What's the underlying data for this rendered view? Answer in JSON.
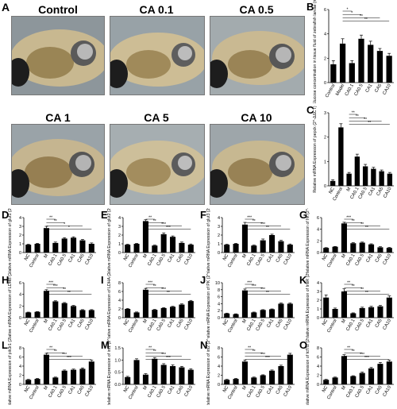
{
  "figure": {
    "images": [
      {
        "label": "A",
        "title": "Control"
      },
      {
        "label": "",
        "title": "CA 0.1"
      },
      {
        "label": "",
        "title": "CA 0.5"
      },
      {
        "label": "",
        "title": "CA 1"
      },
      {
        "label": "",
        "title": "CA 5"
      },
      {
        "label": "",
        "title": "CA 10"
      }
    ]
  },
  "chart_data": [
    {
      "panel": "B",
      "type": "bar",
      "ylabel": "Glucose concentration in tissue fluid of zebrafish larvae (mmol/L)",
      "categories": [
        "Control",
        "Model",
        "CA0.1",
        "CA0.5",
        "CA1",
        "CA5",
        "CA10"
      ],
      "values": [
        1.5,
        3.2,
        1.6,
        3.6,
        3.1,
        2.6,
        2.2
      ],
      "errors": [
        0.3,
        0.4,
        0.2,
        0.3,
        0.3,
        0.2,
        0.2
      ],
      "ylim": [
        0,
        6
      ],
      "yticks": [
        "0",
        "2",
        "4",
        "6"
      ],
      "sig": [
        "*",
        "*",
        "**",
        "**"
      ]
    },
    {
      "panel": "C",
      "type": "bar",
      "ylabel": "Relative mRNA Expression of pepck (2^-ΔΔCT)",
      "categories": [
        "NC",
        "Control",
        "M",
        "CA0.1",
        "CA0.5",
        "CA1",
        "CA5",
        "CA10"
      ],
      "values": [
        0.2,
        2.4,
        0.5,
        1.2,
        0.8,
        0.7,
        0.6,
        0.5
      ],
      "errors": [
        0.05,
        0.15,
        0.05,
        0.1,
        0.08,
        0.06,
        0.05,
        0.05
      ],
      "ylim": [
        0,
        3
      ],
      "yticks": [
        "0",
        "1",
        "2",
        "3"
      ],
      "sig": [
        "**",
        "**",
        "**",
        "**"
      ]
    },
    {
      "panel": "D",
      "type": "bar",
      "ylabel": "Relative mRNA Expression of glut1 (2^-ΔΔCT)",
      "categories": [
        "NC",
        "Control",
        "M",
        "CA0.1",
        "CA0.5",
        "CA1",
        "CA5",
        "CA10"
      ],
      "values": [
        0.9,
        1.0,
        2.8,
        1.1,
        1.6,
        1.7,
        1.4,
        1.0
      ],
      "errors": [
        0.05,
        0.05,
        0.2,
        0.1,
        0.1,
        0.1,
        0.1,
        0.1
      ],
      "ylim": [
        0,
        4
      ],
      "yticks": [
        "0",
        "1",
        "2",
        "3",
        "4"
      ],
      "sig": [
        "**",
        "**",
        "*",
        "*"
      ]
    },
    {
      "panel": "E",
      "type": "bar",
      "ylabel": "Relative mRNA Expression of glut2 (2^-ΔΔCT)",
      "categories": [
        "NC",
        "Control",
        "M",
        "CA0.1",
        "CA0.5",
        "CA1",
        "CA5",
        "CA10"
      ],
      "values": [
        0.9,
        1.0,
        3.6,
        0.8,
        2.1,
        1.8,
        1.1,
        0.9
      ],
      "errors": [
        0.05,
        0.05,
        0.15,
        0.05,
        0.15,
        0.1,
        0.1,
        0.08
      ],
      "ylim": [
        0,
        4
      ],
      "yticks": [
        "0",
        "1",
        "2",
        "3",
        "4"
      ],
      "sig": [
        "**",
        "**",
        "***",
        "***"
      ]
    },
    {
      "panel": "F",
      "type": "bar",
      "ylabel": "Relative mRNA Expression of glut3 (2^-ΔΔCT)",
      "categories": [
        "NC",
        "Control",
        "M",
        "CA0.1",
        "CA0.5",
        "CA1",
        "CA5",
        "CA10"
      ],
      "values": [
        0.9,
        1.0,
        3.2,
        0.8,
        1.4,
        2.0,
        1.3,
        0.9
      ],
      "errors": [
        0.05,
        0.05,
        0.25,
        0.05,
        0.15,
        0.1,
        0.1,
        0.08
      ],
      "ylim": [
        0,
        4
      ],
      "yticks": [
        "0",
        "1",
        "2",
        "3",
        "4"
      ],
      "sig": [
        "***",
        "**",
        "***",
        "**"
      ]
    },
    {
      "panel": "G",
      "type": "bar",
      "ylabel": "Relative mRNA Expression of hk (2^-ΔΔCT)",
      "categories": [
        "NC",
        "Control",
        "M",
        "CA0.1",
        "CA0.5",
        "CA1",
        "CA5",
        "CA10"
      ],
      "values": [
        0.8,
        1.0,
        5.0,
        1.6,
        1.7,
        1.4,
        0.9,
        0.8
      ],
      "errors": [
        0.05,
        0.05,
        0.2,
        0.1,
        0.1,
        0.1,
        0.1,
        0.08
      ],
      "ylim": [
        0,
        6
      ],
      "yticks": [
        "0",
        "2",
        "4",
        "6"
      ],
      "sig": [
        "***",
        "**",
        "**",
        "**"
      ]
    },
    {
      "panel": "H",
      "type": "bar",
      "ylabel": "Relative mRNA Expression of LDHB (2^-ΔΔCT)",
      "categories": [
        "NC",
        "Control",
        "M",
        "CA0.1",
        "CA0.5",
        "CA1",
        "CA5",
        "CA10"
      ],
      "values": [
        0.9,
        1.0,
        4.6,
        2.8,
        2.5,
        2.0,
        1.3,
        1.3
      ],
      "errors": [
        0.05,
        0.05,
        0.2,
        0.1,
        0.1,
        0.1,
        0.08,
        0.08
      ],
      "ylim": [
        0,
        6
      ],
      "yticks": [
        "0",
        "2",
        "4",
        "6"
      ],
      "sig": [
        "***",
        "***",
        "**",
        "**"
      ]
    },
    {
      "panel": "I",
      "type": "bar",
      "ylabel": "Relative mRNA Expression of LDHA (2^-ΔΔCT)",
      "categories": [
        "NC",
        "Control",
        "M",
        "CA0.1",
        "CA0.5",
        "CA1",
        "CA5",
        "CA10"
      ],
      "values": [
        2.0,
        1.2,
        6.4,
        1.8,
        2.2,
        2.5,
        3.0,
        3.8
      ],
      "errors": [
        0.1,
        0.1,
        0.3,
        0.1,
        0.1,
        0.1,
        0.15,
        0.15
      ],
      "ylim": [
        0,
        8
      ],
      "yticks": [
        "0",
        "2",
        "4",
        "6",
        "8"
      ],
      "sig": [
        "***",
        "**",
        "***",
        "**"
      ]
    },
    {
      "panel": "J",
      "type": "bar",
      "ylabel": "Relative mRNA Expression of PK (2^-ΔΔCT)",
      "categories": [
        "NC",
        "Control",
        "M",
        "CA0.1",
        "CA0.5",
        "CA1",
        "CA5",
        "CA10"
      ],
      "values": [
        1.2,
        1.0,
        7.8,
        1.5,
        2.2,
        2.4,
        4.0,
        4.0
      ],
      "errors": [
        0.1,
        0.1,
        0.4,
        0.1,
        0.1,
        0.1,
        0.2,
        0.2
      ],
      "ylim": [
        0,
        10
      ],
      "yticks": [
        "0",
        "2",
        "4",
        "6",
        "8",
        "10"
      ],
      "sig": [
        "***",
        "***",
        "***",
        "**"
      ]
    },
    {
      "panel": "K",
      "type": "bar",
      "ylabel": "Relative mRNA Expression of InsR (2^-ΔΔCT)",
      "categories": [
        "NC",
        "Control",
        "M",
        "CA0.1",
        "CA0.5",
        "CA1",
        "CA5",
        "CA10"
      ],
      "values": [
        2.3,
        1.0,
        3.0,
        0.5,
        1.1,
        1.2,
        1.3,
        2.3
      ],
      "errors": [
        0.3,
        0.1,
        0.3,
        0.05,
        0.1,
        0.1,
        0.1,
        0.2
      ],
      "ylim": [
        0,
        4
      ],
      "yticks": [
        "0",
        "1",
        "2",
        "3",
        "4"
      ],
      "sig": [
        "**",
        "**",
        "**",
        "**"
      ]
    },
    {
      "panel": "L",
      "type": "bar",
      "ylabel": "Relative mRNA Expression of pik3r1 (2^-ΔΔCT)",
      "categories": [
        "NC",
        "Control",
        "M",
        "CA0.1",
        "CA0.5",
        "CA1",
        "CA5",
        "CA10"
      ],
      "values": [
        1.0,
        1.2,
        6.5,
        1.5,
        3.0,
        3.2,
        3.4,
        5.0
      ],
      "errors": [
        0.1,
        0.1,
        0.3,
        0.1,
        0.15,
        0.15,
        0.2,
        0.3
      ],
      "ylim": [
        0,
        8
      ],
      "yticks": [
        "0",
        "2",
        "4",
        "6",
        "8"
      ],
      "sig": [
        "**",
        "**",
        "***",
        "***"
      ]
    },
    {
      "panel": "M",
      "type": "bar",
      "ylabel": "Relative mRNA Expression of irs1 (2^-ΔΔCT)",
      "categories": [
        "NC",
        "Control",
        "M",
        "CA0.1",
        "CA0.5",
        "CA1",
        "CA5",
        "CA10"
      ],
      "values": [
        0.3,
        1.0,
        0.4,
        1.05,
        0.8,
        0.75,
        0.7,
        0.6
      ],
      "errors": [
        0.03,
        0.05,
        0.04,
        0.05,
        0.05,
        0.05,
        0.04,
        0.04
      ],
      "ylim": [
        0,
        1.5
      ],
      "yticks": [
        "0.0",
        "0.5",
        "1.0",
        "1.5"
      ],
      "sig": [
        "**",
        "**",
        "***",
        "***"
      ]
    },
    {
      "panel": "N",
      "type": "bar",
      "ylabel": "Relative mRNA Expression of irs2 (2^-ΔΔCT)",
      "categories": [
        "NC",
        "Control",
        "M",
        "CA0.1",
        "CA0.5",
        "CA1",
        "CA5",
        "CA10"
      ],
      "values": [
        1.0,
        1.2,
        5.0,
        1.5,
        2.0,
        3.0,
        4.0,
        6.5
      ],
      "errors": [
        0.1,
        0.1,
        0.3,
        0.1,
        0.1,
        0.15,
        0.2,
        0.3
      ],
      "ylim": [
        0,
        8
      ],
      "yticks": [
        "0",
        "2",
        "4",
        "6",
        "8"
      ],
      "sig": [
        "**",
        "**",
        "***",
        "***"
      ]
    },
    {
      "panel": "O",
      "type": "bar",
      "ylabel": "Relative mRNA Expression of tcf7l2 (2^-ΔΔCT)",
      "categories": [
        "NC",
        "Control",
        "M",
        "CA0.1",
        "CA0.5",
        "CA1",
        "CA5",
        "CA10"
      ],
      "values": [
        1.0,
        1.5,
        6.2,
        1.8,
        2.5,
        3.5,
        4.5,
        5.0
      ],
      "errors": [
        0.1,
        0.1,
        0.3,
        0.1,
        0.2,
        0.2,
        0.3,
        0.3
      ],
      "ylim": [
        0,
        8
      ],
      "yticks": [
        "0",
        "2",
        "4",
        "6",
        "8"
      ],
      "sig": [
        "**",
        "**",
        "***",
        "***"
      ]
    }
  ]
}
